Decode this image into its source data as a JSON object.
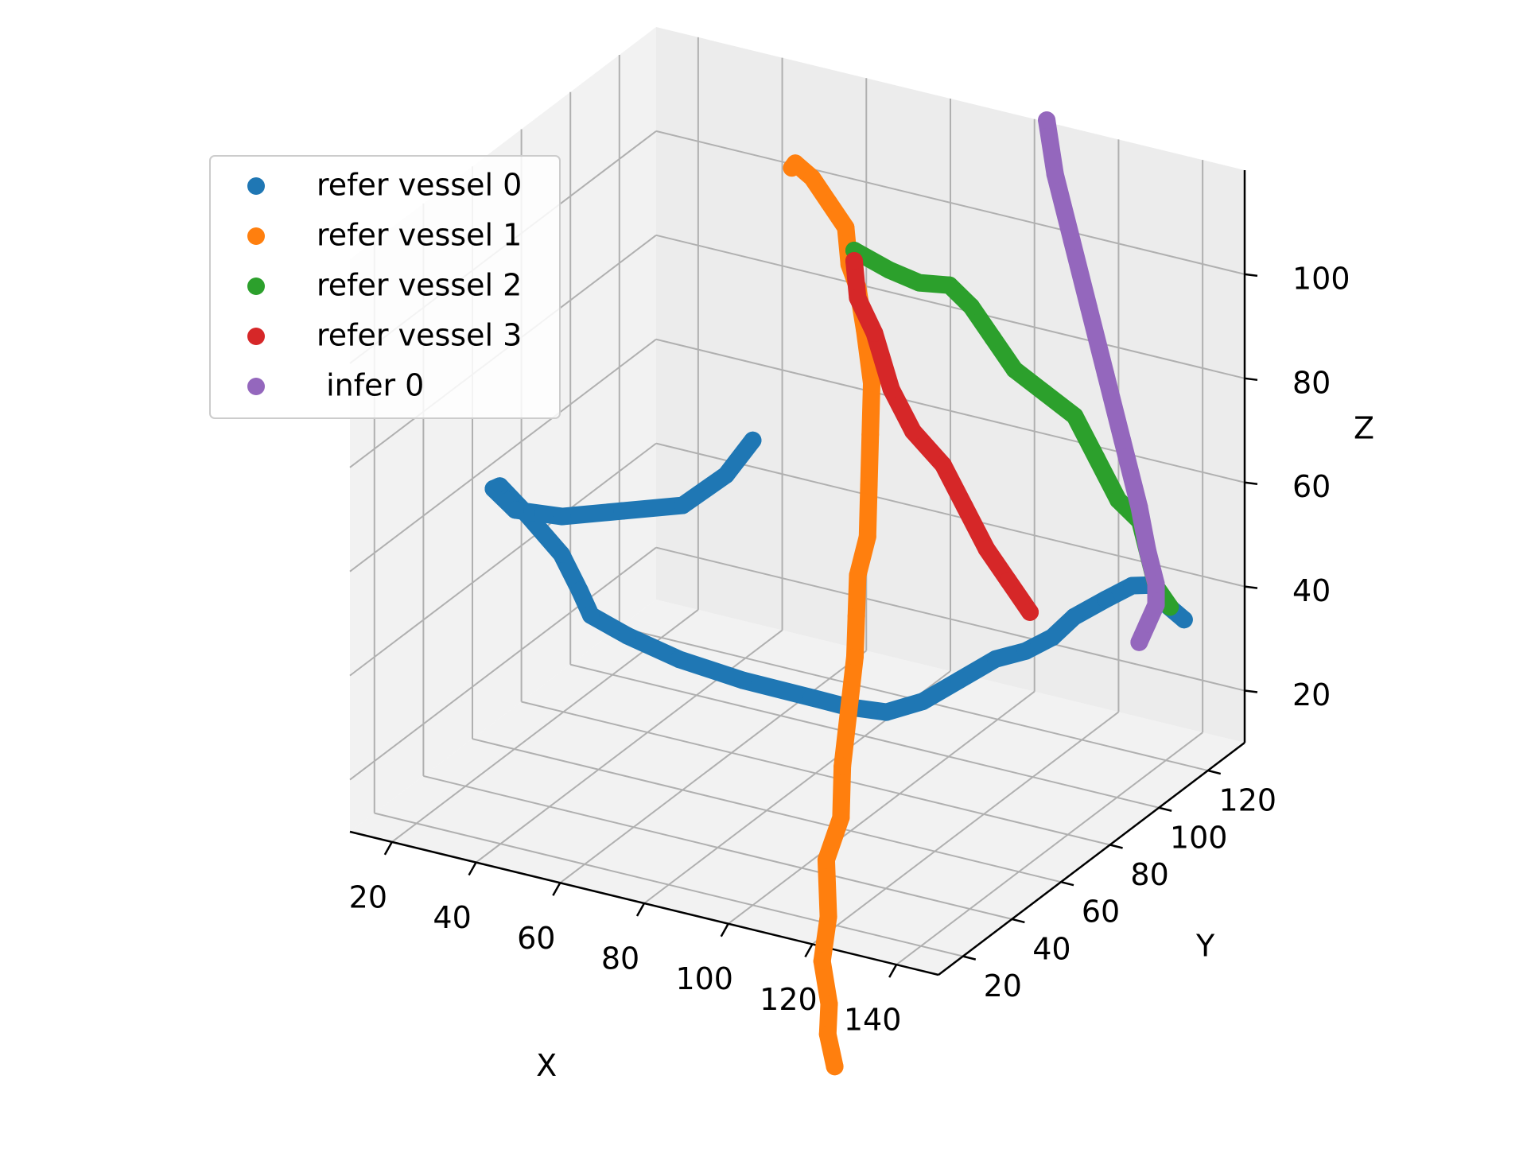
{
  "chart_data": {
    "type": "scatter",
    "projection": "3d",
    "axes": {
      "x": {
        "label": "X",
        "ticks": [
          "20",
          "40",
          "60",
          "80",
          "100",
          "120",
          "140"
        ]
      },
      "y": {
        "label": "Y",
        "ticks": [
          "20",
          "40",
          "60",
          "80",
          "100",
          "120"
        ]
      },
      "z": {
        "label": "Z",
        "ticks": [
          "20",
          "40",
          "60",
          "80",
          "100"
        ]
      }
    },
    "grid": true,
    "legend_position": "upper-left",
    "series": [
      {
        "name": "refer vessel 0",
        "color": "#1f77b4",
        "points": [
          [
            36,
            24,
            76
          ],
          [
            34,
            30,
            74
          ],
          [
            38,
            34,
            68
          ],
          [
            44,
            38,
            60
          ],
          [
            46,
            42,
            52
          ],
          [
            44,
            50,
            44
          ],
          [
            48,
            58,
            38
          ],
          [
            58,
            62,
            34
          ],
          [
            72,
            64,
            32
          ],
          [
            86,
            68,
            30
          ],
          [
            92,
            72,
            28
          ],
          [
            98,
            78,
            26
          ],
          [
            102,
            86,
            26
          ],
          [
            106,
            94,
            28
          ],
          [
            110,
            102,
            30
          ],
          [
            116,
            104,
            32
          ],
          [
            120,
            108,
            34
          ],
          [
            124,
            110,
            38
          ],
          [
            128,
            116,
            40
          ],
          [
            132,
            120,
            42
          ],
          [
            138,
            118,
            44
          ],
          [
            140,
            120,
            40
          ],
          [
            142,
            124,
            36
          ],
          [
            36,
            24,
            76
          ],
          [
            40,
            26,
            72
          ],
          [
            50,
            28,
            72
          ],
          [
            62,
            32,
            74
          ],
          [
            74,
            36,
            76
          ],
          [
            82,
            40,
            82
          ],
          [
            86,
            44,
            88
          ]
        ]
      },
      {
        "name": "refer vessel 1",
        "color": "#ff7f0e",
        "points": [
          [
            58,
            108,
            112
          ],
          [
            60,
            106,
            114
          ],
          [
            64,
            106,
            112
          ],
          [
            68,
            106,
            108
          ],
          [
            72,
            106,
            104
          ],
          [
            74,
            104,
            98
          ],
          [
            76,
            104,
            94
          ],
          [
            80,
            100,
            88
          ],
          [
            84,
            96,
            80
          ],
          [
            86,
            92,
            72
          ],
          [
            88,
            88,
            64
          ],
          [
            90,
            84,
            56
          ],
          [
            90,
            80,
            50
          ],
          [
            92,
            76,
            44
          ],
          [
            94,
            72,
            38
          ],
          [
            96,
            66,
            30
          ],
          [
            98,
            60,
            22
          ],
          [
            100,
            56,
            14
          ],
          [
            100,
            50,
            8
          ],
          [
            104,
            44,
            0
          ],
          [
            106,
            38,
            -6
          ],
          [
            110,
            34,
            -12
          ],
          [
            112,
            30,
            -16
          ],
          [
            116,
            26,
            -20
          ]
        ]
      },
      {
        "name": "refer vessel 2",
        "color": "#2ca02c",
        "points": [
          [
            74,
            106,
            100
          ],
          [
            80,
            110,
            96
          ],
          [
            86,
            112,
            94
          ],
          [
            92,
            114,
            94
          ],
          [
            96,
            116,
            90
          ],
          [
            100,
            118,
            84
          ],
          [
            104,
            120,
            78
          ],
          [
            110,
            122,
            74
          ],
          [
            116,
            124,
            70
          ],
          [
            120,
            126,
            62
          ],
          [
            124,
            128,
            54
          ],
          [
            128,
            130,
            50
          ],
          [
            130,
            130,
            44
          ],
          [
            132,
            130,
            38
          ],
          [
            134,
            132,
            34
          ]
        ]
      },
      {
        "name": "refer vessel 3",
        "color": "#d62728",
        "points": [
          [
            74,
            106,
            98
          ],
          [
            76,
            104,
            92
          ],
          [
            80,
            104,
            86
          ],
          [
            84,
            104,
            76
          ],
          [
            88,
            106,
            68
          ],
          [
            94,
            108,
            62
          ],
          [
            98,
            110,
            54
          ],
          [
            102,
            112,
            46
          ],
          [
            106,
            114,
            40
          ],
          [
            110,
            116,
            34
          ]
        ]
      },
      {
        "name": " infer 0",
        "color": "#9467bd",
        "points": [
          [
            100,
            140,
            118
          ],
          [
            102,
            140,
            108
          ],
          [
            106,
            140,
            96
          ],
          [
            110,
            140,
            84
          ],
          [
            114,
            140,
            72
          ],
          [
            118,
            140,
            60
          ],
          [
            122,
            140,
            48
          ],
          [
            124,
            140,
            40
          ],
          [
            126,
            140,
            34
          ],
          [
            126,
            140,
            30
          ],
          [
            124,
            140,
            26
          ],
          [
            122,
            140,
            22
          ]
        ]
      }
    ]
  }
}
